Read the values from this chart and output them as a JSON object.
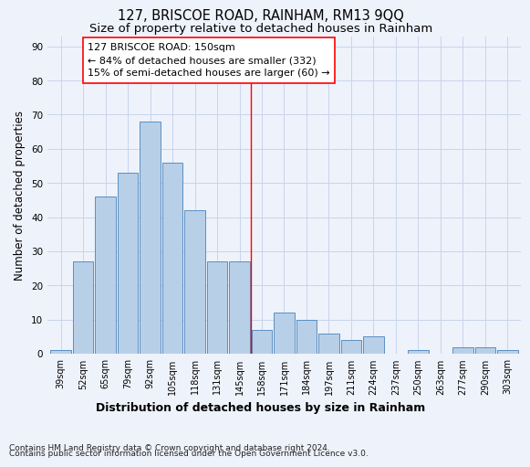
{
  "title": "127, BRISCOE ROAD, RAINHAM, RM13 9QQ",
  "subtitle": "Size of property relative to detached houses in Rainham",
  "xlabel": "Distribution of detached houses by size in Rainham",
  "ylabel": "Number of detached properties",
  "categories": [
    "39sqm",
    "52sqm",
    "65sqm",
    "79sqm",
    "92sqm",
    "105sqm",
    "118sqm",
    "131sqm",
    "145sqm",
    "158sqm",
    "171sqm",
    "184sqm",
    "197sqm",
    "211sqm",
    "224sqm",
    "237sqm",
    "250sqm",
    "263sqm",
    "277sqm",
    "290sqm",
    "303sqm"
  ],
  "values": [
    1,
    27,
    46,
    53,
    68,
    56,
    42,
    27,
    27,
    7,
    12,
    10,
    6,
    4,
    5,
    0,
    1,
    0,
    2,
    2,
    1
  ],
  "bar_color": "#b8cfe8",
  "bar_edgecolor": "#5a8fc2",
  "background_color": "#eef2fb",
  "grid_color": "#c8d4ec",
  "vline_x": 8.5,
  "vline_color": "red",
  "annotation_line1": "127 BRISCOE ROAD: 150sqm",
  "annotation_line2": "← 84% of detached houses are smaller (332)",
  "annotation_line3": "15% of semi-detached houses are larger (60) →",
  "annotation_box_color": "white",
  "annotation_box_edgecolor": "red",
  "yticks": [
    0,
    10,
    20,
    30,
    40,
    50,
    60,
    70,
    80,
    90
  ],
  "ylim": [
    0,
    93
  ],
  "footnote_line1": "Contains HM Land Registry data © Crown copyright and database right 2024.",
  "footnote_line2": "Contains public sector information licensed under the Open Government Licence v3.0.",
  "title_fontsize": 10.5,
  "subtitle_fontsize": 9.5,
  "xlabel_fontsize": 9,
  "ylabel_fontsize": 8.5,
  "tick_fontsize": 7,
  "annotation_fontsize": 8,
  "footnote_fontsize": 6.5
}
